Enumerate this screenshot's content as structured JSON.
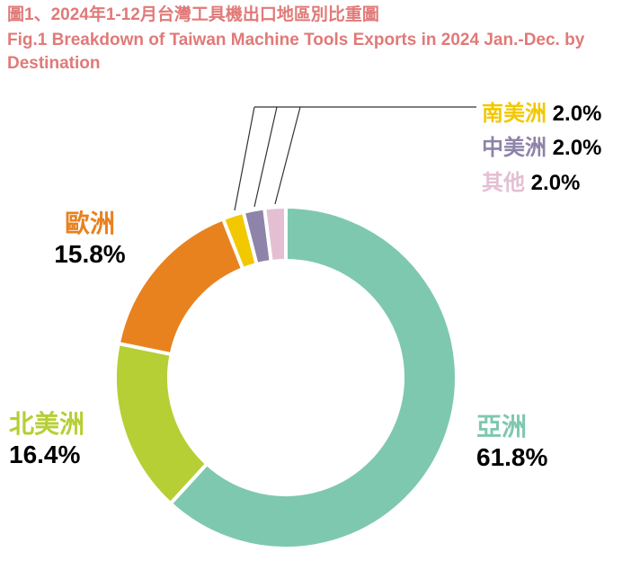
{
  "chart_data": {
    "type": "pie",
    "variant": "donut",
    "title": "圖1、2024年1-12月台灣工具機出口地區別比重圖",
    "subtitle": "Fig.1    Breakdown of Taiwan Machine Tools Exports in 2024 Jan.-Dec. by Destination",
    "slices": [
      {
        "label": "亞洲",
        "value": 61.8,
        "display": "61.8%",
        "color": "#7ec8b0"
      },
      {
        "label": "北美洲",
        "value": 16.4,
        "display": "16.4%",
        "color": "#b5cf35"
      },
      {
        "label": "歐洲",
        "value": 15.8,
        "display": "15.8%",
        "color": "#e8821f"
      },
      {
        "label": "南美洲",
        "value": 2.0,
        "display": "2.0%",
        "color": "#f2c800"
      },
      {
        "label": "中美洲",
        "value": 2.0,
        "display": "2.0%",
        "color": "#8e83a8"
      },
      {
        "label": "其他",
        "value": 2.0,
        "display": "2.0%",
        "color": "#e4bfd3"
      }
    ],
    "title_color": "#e07a78"
  }
}
